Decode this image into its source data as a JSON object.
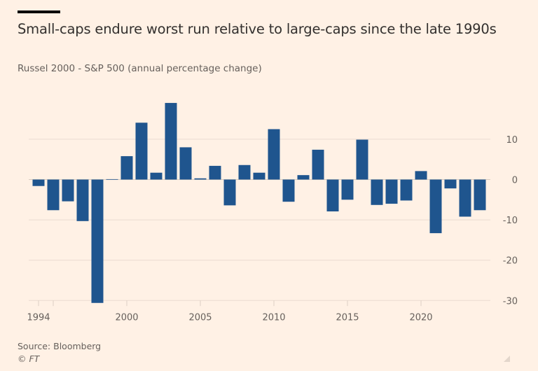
{
  "header": {
    "title": "Small-caps endure worst run relative to large-caps since the late 1990s",
    "subtitle": "Russel 2000 - S&P 500 (annual percentage change)"
  },
  "footer": {
    "source": "Source: Bloomberg",
    "copyright": "© FT"
  },
  "colors": {
    "background": "#fff1e5",
    "bar": "#1f558e",
    "gridline": "#eadbd0",
    "axis_text": "#66605c"
  },
  "chart_data": {
    "type": "bar",
    "title": "Small-caps endure worst run relative to large-caps since the late 1990s",
    "subtitle": "Russel 2000 - S&P 500 (annual percentage change)",
    "xlabel": "",
    "ylabel": "",
    "categories": [
      1994,
      1995,
      1996,
      1997,
      1998,
      1999,
      2000,
      2001,
      2002,
      2003,
      2004,
      2005,
      2006,
      2007,
      2008,
      2009,
      2010,
      2011,
      2012,
      2013,
      2014,
      2015,
      2016,
      2017,
      2018,
      2019,
      2020,
      2021,
      2022,
      2023,
      2024
    ],
    "values": [
      -1.6,
      -7.6,
      -5.4,
      -10.3,
      -30.6,
      0.1,
      5.8,
      14.1,
      1.7,
      19.0,
      8.0,
      0.3,
      3.4,
      -6.4,
      3.6,
      1.7,
      12.5,
      -5.5,
      1.1,
      7.4,
      -7.9,
      -5.0,
      9.9,
      -6.3,
      -6.0,
      -5.2,
      2.1,
      -13.3,
      -2.2,
      -9.2,
      -7.6
    ],
    "ylim": [
      -30,
      20
    ],
    "yticks": [
      10,
      0,
      -10,
      -20,
      -30
    ],
    "ytick_labels": [
      "10",
      "0",
      "-10",
      "-20",
      "-30"
    ],
    "xticks": [
      1994,
      1995,
      2000,
      2005,
      2010,
      2015,
      2020
    ],
    "xtick_labels": [
      "1994",
      "",
      "2000",
      "2005",
      "2010",
      "2015",
      "2020"
    ],
    "y_axis_position": "right",
    "grid": true,
    "source": "Source: Bloomberg"
  }
}
